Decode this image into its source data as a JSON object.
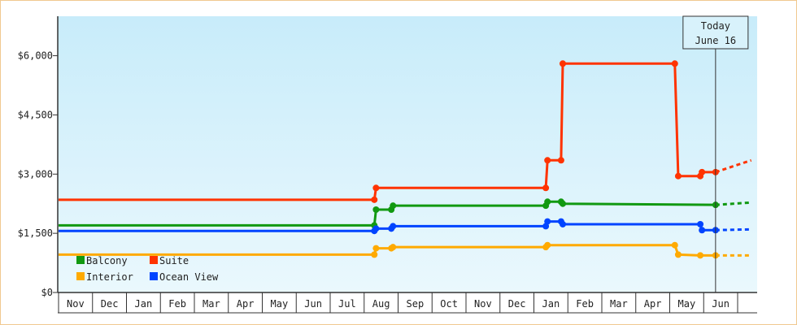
{
  "chart_data": {
    "type": "line",
    "title": "",
    "xlabel": "",
    "ylabel": "",
    "ylim": [
      0,
      7000
    ],
    "y_ticks": [
      {
        "value": 0,
        "label": "$0"
      },
      {
        "value": 1500,
        "label": "$1,500"
      },
      {
        "value": 3000,
        "label": "$3,000"
      },
      {
        "value": 4500,
        "label": "$4,500"
      },
      {
        "value": 6000,
        "label": "$6,000"
      }
    ],
    "month_labels": [
      "Nov",
      "Dec",
      "Jan",
      "Feb",
      "Mar",
      "Apr",
      "May",
      "Jun",
      "Jul",
      "Aug",
      "Sep",
      "Oct",
      "Nov",
      "Dec",
      "Jan",
      "Feb",
      "Mar",
      "Apr",
      "May",
      "Jun"
    ],
    "today_marker": {
      "line1": "Today",
      "line2": "June 16",
      "x": 19.35
    },
    "background": {
      "top": "#c8ecfa",
      "bottom": "#eaf8fd"
    },
    "grid": false,
    "legend_position": "bottom-left",
    "series": [
      {
        "name": "Suite",
        "color": "#ff3300",
        "points": [
          [
            0,
            2350
          ],
          [
            9.3,
            2350
          ],
          [
            9.35,
            2650
          ],
          [
            14.35,
            2650
          ],
          [
            14.4,
            3350
          ],
          [
            14.8,
            3350
          ],
          [
            14.85,
            5800
          ],
          [
            18.15,
            5800
          ],
          [
            18.25,
            2950
          ],
          [
            18.9,
            2950
          ],
          [
            18.95,
            3050
          ],
          [
            19.35,
            3050
          ]
        ],
        "forecast": [
          [
            19.35,
            3050
          ],
          [
            20.4,
            3350
          ]
        ]
      },
      {
        "name": "Balcony",
        "color": "#119911",
        "points": [
          [
            0,
            1700
          ],
          [
            9.3,
            1700
          ],
          [
            9.35,
            2100
          ],
          [
            9.8,
            2100
          ],
          [
            9.85,
            2200
          ],
          [
            14.35,
            2200
          ],
          [
            14.4,
            2300
          ],
          [
            14.8,
            2300
          ],
          [
            14.85,
            2250
          ],
          [
            19.35,
            2220
          ]
        ],
        "forecast": [
          [
            19.35,
            2220
          ],
          [
            20.4,
            2280
          ]
        ]
      },
      {
        "name": "Ocean View",
        "color": "#0044ff",
        "points": [
          [
            0,
            1560
          ],
          [
            9.3,
            1560
          ],
          [
            9.35,
            1620
          ],
          [
            9.8,
            1620
          ],
          [
            9.85,
            1680
          ],
          [
            14.35,
            1680
          ],
          [
            14.4,
            1800
          ],
          [
            14.8,
            1800
          ],
          [
            14.85,
            1730
          ],
          [
            18.15,
            1730
          ],
          [
            18.25,
            1730
          ],
          [
            18.9,
            1730
          ],
          [
            18.95,
            1580
          ],
          [
            19.35,
            1580
          ]
        ],
        "forecast": [
          [
            19.35,
            1580
          ],
          [
            20.4,
            1600
          ]
        ]
      },
      {
        "name": "Interior",
        "color": "#ffaa00",
        "points": [
          [
            0,
            960
          ],
          [
            9.3,
            960
          ],
          [
            9.35,
            1120
          ],
          [
            9.8,
            1120
          ],
          [
            9.85,
            1150
          ],
          [
            14.35,
            1150
          ],
          [
            14.4,
            1200
          ],
          [
            18.15,
            1200
          ],
          [
            18.25,
            960
          ],
          [
            18.9,
            940
          ],
          [
            19.35,
            940
          ]
        ],
        "forecast": [
          [
            19.35,
            940
          ],
          [
            20.4,
            940
          ]
        ]
      }
    ]
  }
}
